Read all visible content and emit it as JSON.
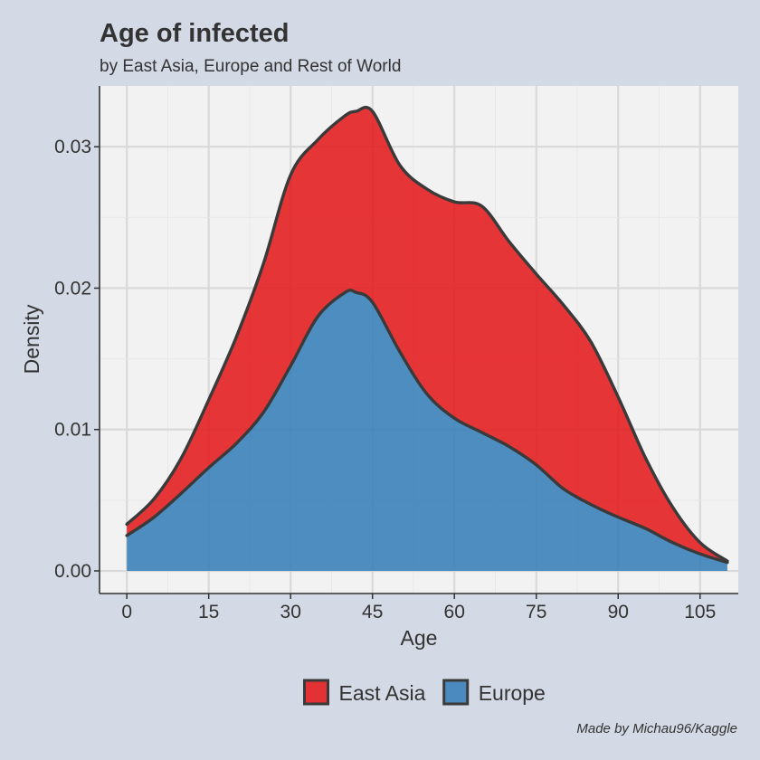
{
  "chart_data": {
    "type": "area",
    "stacked": true,
    "title": "Age of infected",
    "subtitle": "by East Asia, Europe and Rest of World",
    "xlabel": "Age",
    "ylabel": "Density",
    "caption": "Made by Michau96/Kaggle",
    "xlim": [
      -5,
      112
    ],
    "ylim": [
      -0.0016,
      0.0343
    ],
    "x_ticks": [
      0,
      15,
      30,
      45,
      60,
      75,
      90,
      105
    ],
    "x_tick_labels": [
      "0",
      "15",
      "30",
      "45",
      "60",
      "75",
      "90",
      "105"
    ],
    "y_ticks": [
      0,
      0.01,
      0.02,
      0.03
    ],
    "y_tick_labels": [
      "0.00",
      "0.01",
      "0.02",
      "0.03"
    ],
    "grid": true,
    "legend_position": "bottom",
    "x": [
      0,
      5,
      10,
      15,
      20,
      25,
      30,
      35,
      40,
      42,
      45,
      50,
      55,
      60,
      65,
      70,
      75,
      80,
      85,
      90,
      95,
      100,
      105,
      110
    ],
    "series": [
      {
        "name": "Europe",
        "color": "#377eb8",
        "values": [
          0.0025,
          0.0038,
          0.0055,
          0.0073,
          0.009,
          0.0112,
          0.0145,
          0.018,
          0.0197,
          0.0197,
          0.019,
          0.0155,
          0.0125,
          0.0108,
          0.0098,
          0.0088,
          0.0075,
          0.0058,
          0.0047,
          0.0038,
          0.003,
          0.002,
          0.0012,
          0.0006
        ]
      },
      {
        "name": "East Asia",
        "color": "#e41a1c",
        "values": [
          0.0008,
          0.0013,
          0.0025,
          0.0048,
          0.0075,
          0.0105,
          0.0135,
          0.0125,
          0.0125,
          0.0128,
          0.0135,
          0.0132,
          0.0145,
          0.0153,
          0.016,
          0.0145,
          0.0135,
          0.013,
          0.0115,
          0.0085,
          0.005,
          0.0025,
          0.0008,
          0.0001
        ]
      }
    ]
  }
}
